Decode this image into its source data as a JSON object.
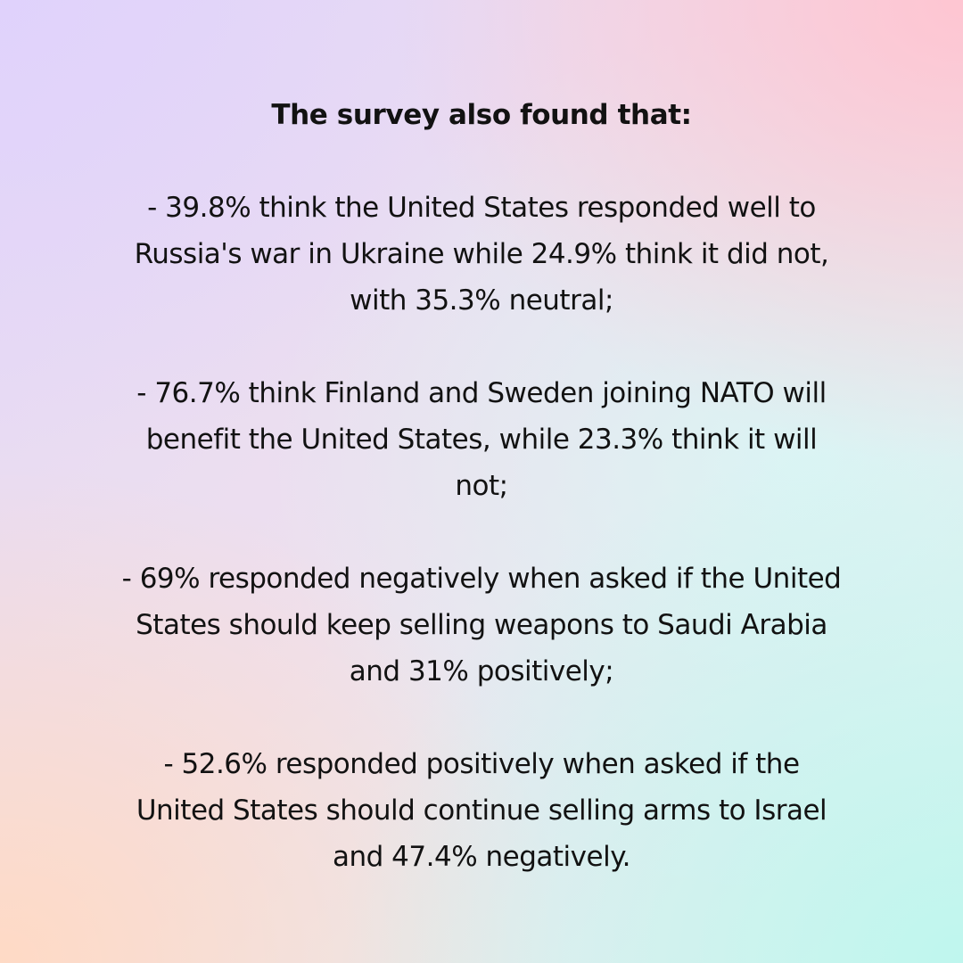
{
  "heading": "The survey also found that:",
  "paragraphs": [
    {
      "lines": [
        "- 39.8% think the United States responded well to",
        "Russia's war in Ukraine while 24.9% think it did not,",
        "with 35.3% neutral;"
      ]
    },
    {
      "lines": [
        "- 76.7% think Finland and Sweden joining NATO will",
        "benefit the United States, while 23.3% think it will",
        "not;"
      ]
    },
    {
      "lines": [
        "- 69% responded negatively when asked if the United",
        "States should keep selling weapons to Saudi Arabia",
        "and 31% positively;"
      ]
    },
    {
      "lines": [
        "- 52.6% responded positively when asked if the",
        "United States should continue selling arms to Israel",
        "and 47.4% negatively."
      ]
    }
  ],
  "colors": {
    "text": "#121212",
    "top_left": "#e0d2fc",
    "top_right": "#ffc4d0",
    "bottom_left": "#ffdac4",
    "bottom_right": "#bef6ee"
  }
}
